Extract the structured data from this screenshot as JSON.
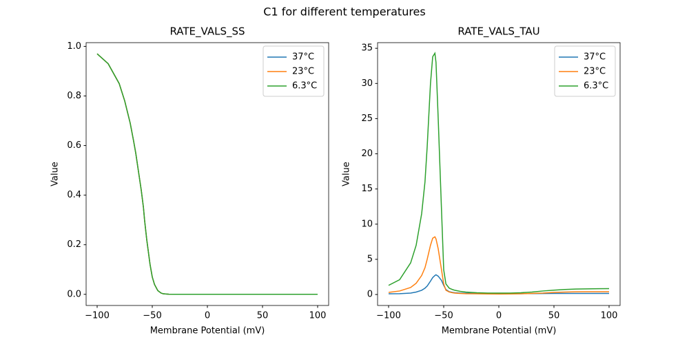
{
  "title": "C1 for different temperatures",
  "chart_data": [
    {
      "type": "line",
      "title": "RATE_VALS_SS",
      "xlabel": "Membrane Potential (mV)",
      "ylabel": "Value",
      "x": [
        -100,
        -90,
        -80,
        -75,
        -70,
        -67,
        -65,
        -62,
        -60,
        -58,
        -57,
        -55,
        -52,
        -50,
        -48,
        -45,
        -42,
        -40,
        -35,
        -30,
        -20,
        -10,
        0,
        10,
        20,
        30,
        40,
        50,
        60,
        70,
        80,
        90,
        100
      ],
      "series": [
        {
          "name": "37°C",
          "color": "#1f77b4",
          "values": [
            0.97,
            0.93,
            0.85,
            0.78,
            0.69,
            0.62,
            0.57,
            0.48,
            0.42,
            0.35,
            0.3,
            0.22,
            0.12,
            0.07,
            0.04,
            0.015,
            0.005,
            0.002,
            0.0005,
            0,
            0,
            0,
            0,
            0,
            0,
            0,
            0,
            0,
            0,
            0,
            0,
            0,
            0
          ]
        },
        {
          "name": "23°C",
          "color": "#ff7f0e",
          "values": [
            0.97,
            0.93,
            0.85,
            0.78,
            0.69,
            0.62,
            0.57,
            0.48,
            0.42,
            0.35,
            0.3,
            0.22,
            0.12,
            0.07,
            0.04,
            0.015,
            0.005,
            0.002,
            0.0005,
            0,
            0,
            0,
            0,
            0,
            0,
            0,
            0,
            0,
            0,
            0,
            0,
            0,
            0
          ]
        },
        {
          "name": "6.3°C",
          "color": "#2ca02c",
          "values": [
            0.97,
            0.93,
            0.85,
            0.78,
            0.69,
            0.62,
            0.57,
            0.48,
            0.42,
            0.35,
            0.3,
            0.22,
            0.12,
            0.07,
            0.04,
            0.015,
            0.005,
            0.002,
            0.0005,
            0,
            0,
            0,
            0,
            0,
            0,
            0,
            0,
            0,
            0,
            0,
            0,
            0,
            0
          ]
        }
      ],
      "xlim": [
        -110,
        110
      ],
      "xticks": [
        {
          "value": -100,
          "label": "−100"
        },
        {
          "value": -50,
          "label": "−50"
        },
        0,
        50,
        100
      ],
      "ylim": [
        -0.045,
        1.015
      ],
      "yticks": [
        {
          "value": 0,
          "label": "0.0"
        },
        0.2,
        0.4,
        0.6,
        0.8,
        {
          "value": 1,
          "label": "1.0"
        }
      ],
      "legend": "upper right"
    },
    {
      "type": "line",
      "title": "RATE_VALS_TAU",
      "xlabel": "Membrane Potential (mV)",
      "ylabel": "Value",
      "x": [
        -100,
        -90,
        -80,
        -75,
        -70,
        -67,
        -65,
        -62,
        -60,
        -58,
        -57,
        -55,
        -52,
        -50,
        -48,
        -45,
        -42,
        -40,
        -35,
        -30,
        -20,
        -10,
        0,
        10,
        20,
        30,
        40,
        50,
        60,
        70,
        80,
        90,
        100
      ],
      "series": [
        {
          "name": "37°C",
          "color": "#1f77b4",
          "values": [
            0.1,
            0.12,
            0.2,
            0.35,
            0.6,
            0.9,
            1.2,
            1.9,
            2.4,
            2.7,
            2.8,
            2.6,
            2.0,
            1.3,
            0.7,
            0.4,
            0.3,
            0.25,
            0.2,
            0.18,
            0.15,
            0.13,
            0.12,
            0.12,
            0.12,
            0.13,
            0.14,
            0.15,
            0.15,
            0.15,
            0.15,
            0.15,
            0.15
          ]
        },
        {
          "name": "23°C",
          "color": "#ff7f0e",
          "values": [
            0.3,
            0.5,
            1.0,
            1.6,
            2.7,
            3.8,
            5,
            7,
            8,
            8.2,
            7.9,
            6.5,
            3.5,
            1.5,
            0.6,
            0.35,
            0.25,
            0.2,
            0.15,
            0.12,
            0.1,
            0.08,
            0.07,
            0.08,
            0.1,
            0.15,
            0.2,
            0.3,
            0.35,
            0.38,
            0.4,
            0.4,
            0.4
          ]
        },
        {
          "name": "6.3°C",
          "color": "#2ca02c",
          "values": [
            1.3,
            2.1,
            4.5,
            7,
            11.5,
            16,
            21,
            30,
            33.8,
            34.3,
            33,
            25,
            12,
            3.5,
            1.5,
            0.9,
            0.7,
            0.6,
            0.45,
            0.35,
            0.25,
            0.2,
            0.2,
            0.2,
            0.25,
            0.35,
            0.5,
            0.62,
            0.72,
            0.78,
            0.8,
            0.82,
            0.83
          ]
        }
      ],
      "xlim": [
        -110,
        110
      ],
      "xticks": [
        {
          "value": -100,
          "label": "−100"
        },
        {
          "value": -50,
          "label": "−50"
        },
        0,
        50,
        100
      ],
      "ylim": [
        -1.56,
        35.8
      ],
      "yticks": [
        0,
        5,
        10,
        15,
        20,
        25,
        30,
        35
      ],
      "legend": "upper right"
    }
  ]
}
